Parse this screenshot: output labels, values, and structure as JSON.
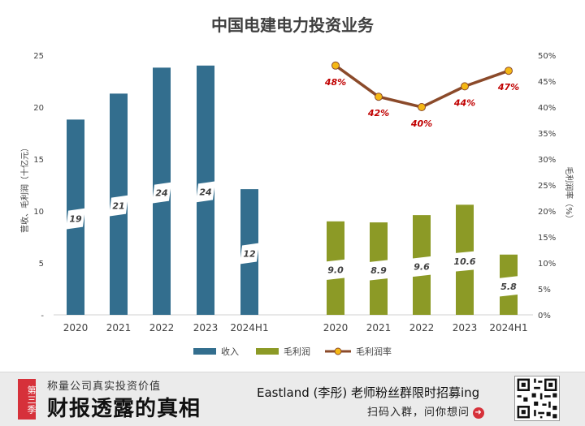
{
  "chart_data": {
    "type": "bar+line",
    "title": "中国电建电力投资业务",
    "left_axis": {
      "label": "营收、毛利润（十亿元）",
      "ticks": [
        "-",
        "5",
        "10",
        "15",
        "20",
        "25"
      ],
      "ylim": [
        0,
        25
      ]
    },
    "right_axis": {
      "label": "毛利润率（%）",
      "ticks": [
        "0%",
        "5%",
        "10%",
        "15%",
        "20%",
        "25%",
        "30%",
        "35%",
        "40%",
        "45%",
        "50%"
      ],
      "ylim": [
        0,
        50
      ]
    },
    "categories": [
      "2020",
      "2021",
      "2022",
      "2023",
      "2024H1"
    ],
    "revenue": {
      "name": "收入",
      "values": [
        18.8,
        21.3,
        23.8,
        24.0,
        12.1
      ],
      "labels": [
        "19",
        "21",
        "24",
        "24",
        "12"
      ],
      "color": "#336e8e"
    },
    "gross_profit": {
      "name": "毛利润",
      "values": [
        9.0,
        8.9,
        9.6,
        10.6,
        5.8
      ],
      "labels": [
        "9.0",
        "8.9",
        "9.6",
        "10.6",
        "5.8"
      ],
      "color": "#8c9a26"
    },
    "gross_margin": {
      "name": "毛利润率",
      "values": [
        48,
        42,
        40,
        44,
        47
      ],
      "labels": [
        "48%",
        "42%",
        "40%",
        "44%",
        "47%"
      ],
      "line_color": "#8b4a2a",
      "marker_color": "#f5b814",
      "label_color": "#c00000"
    }
  },
  "banner": {
    "badge": "第三季",
    "subtitle": "称量公司真实投资价值",
    "headline": "财报透露的真相",
    "promo_line1": "Eastland (李彤) 老师粉丝群限时招募ing",
    "promo_line2": "扫码入群，问你想问",
    "qr_icon": "qr-code-icon"
  }
}
